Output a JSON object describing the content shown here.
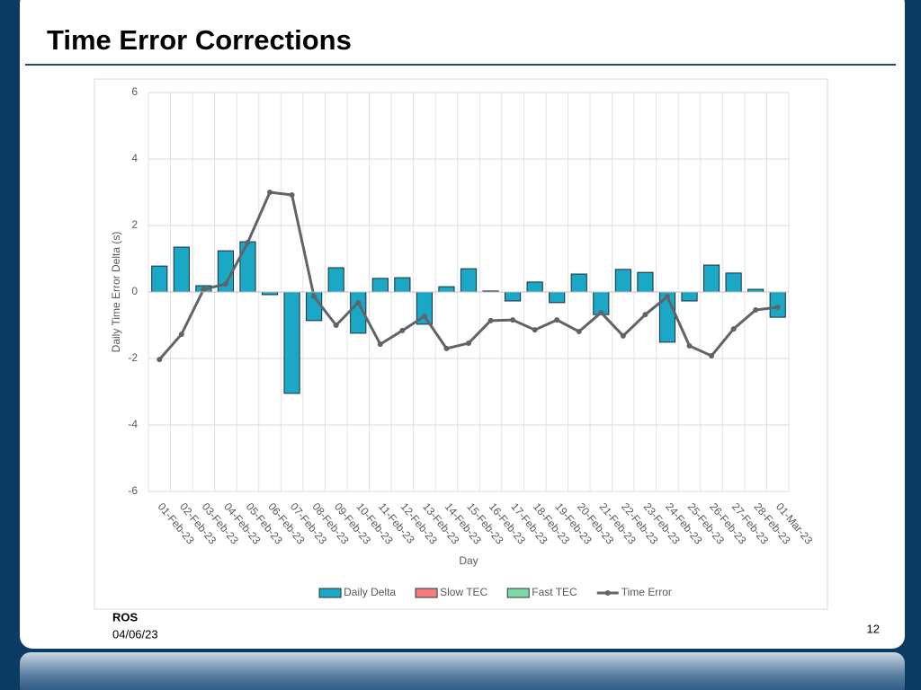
{
  "title": "Time Error Corrections",
  "footer": {
    "author": "ROS",
    "date": "04/06/23",
    "page": "12"
  },
  "chart_data": {
    "type": "bar",
    "x_label": "Day",
    "y_label": "Daily Time Error Delta (s)",
    "categories": [
      "01-Feb-23",
      "02-Feb-23",
      "03-Feb-23",
      "04-Feb-23",
      "05-Feb-23",
      "06-Feb-23",
      "07-Feb-23",
      "08-Feb-23",
      "09-Feb-23",
      "10-Feb-23",
      "11-Feb-23",
      "12-Feb-23",
      "13-Feb-23",
      "14-Feb-23",
      "15-Feb-23",
      "16-Feb-23",
      "17-Feb-23",
      "18-Feb-23",
      "19-Feb-23",
      "20-Feb-23",
      "21-Feb-23",
      "22-Feb-23",
      "23-Feb-23",
      "24-Feb-23",
      "25-Feb-23",
      "26-Feb-23",
      "27-Feb-23",
      "28-Feb-23",
      "01-Mar-23"
    ],
    "series": [
      {
        "name": "Daily Delta",
        "type": "bar",
        "color": "#1ba8c6",
        "values": [
          0.78,
          1.35,
          0.19,
          1.24,
          1.51,
          -0.08,
          -3.05,
          -0.86,
          0.73,
          -1.24,
          0.41,
          0.43,
          -0.97,
          0.16,
          0.7,
          0.03,
          -0.27,
          0.3,
          -0.32,
          0.54,
          -0.68,
          0.68,
          0.59,
          -1.51,
          -0.27,
          0.81,
          0.57,
          0.08,
          -0.76
        ]
      },
      {
        "name": "Slow TEC",
        "type": "bar",
        "color": "#f47c7c",
        "values": [
          null,
          null,
          null,
          null,
          null,
          null,
          null,
          null,
          null,
          null,
          null,
          null,
          null,
          null,
          null,
          null,
          null,
          null,
          null,
          null,
          null,
          null,
          null,
          null,
          null,
          null,
          null,
          null,
          null
        ]
      },
      {
        "name": "Fast TEC",
        "type": "bar",
        "color": "#7fd8a8",
        "values": [
          null,
          null,
          null,
          null,
          null,
          null,
          null,
          null,
          null,
          null,
          null,
          null,
          null,
          null,
          null,
          null,
          null,
          null,
          null,
          null,
          null,
          null,
          null,
          null,
          null,
          null,
          null,
          null,
          null
        ]
      },
      {
        "name": "Time Error",
        "type": "line",
        "color": "#5f6468",
        "values": [
          -2.03,
          -1.27,
          0.08,
          0.24,
          1.49,
          3.0,
          2.92,
          -0.14,
          -1.0,
          -0.32,
          -1.57,
          -1.16,
          -0.73,
          -1.7,
          -1.54,
          -0.86,
          -0.84,
          -1.14,
          -0.84,
          -1.19,
          -0.62,
          -1.32,
          -0.68,
          -0.14,
          -1.62,
          -1.92,
          -1.11,
          -0.54,
          -0.46
        ]
      }
    ],
    "ylim": [
      -6,
      6
    ],
    "yticks": [
      -6,
      -4,
      -2,
      0,
      2,
      4,
      6
    ],
    "grid": true,
    "legend": "bottom"
  }
}
